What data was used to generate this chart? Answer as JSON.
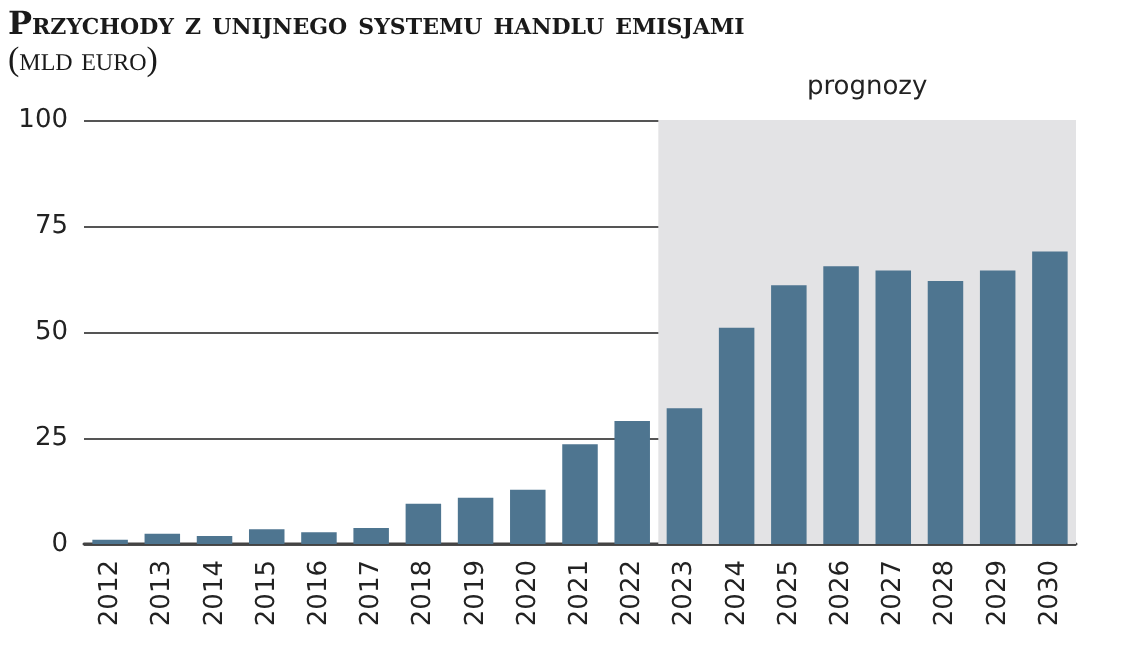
{
  "chart_data": {
    "type": "bar",
    "title": "Przychody z unijnego systemu handlu emisjami",
    "subtitle": "(mld euro)",
    "categories": [
      "2012",
      "2013",
      "2014",
      "2015",
      "2016",
      "2017",
      "2018",
      "2019",
      "2020",
      "2021",
      "2022",
      "2023",
      "2024",
      "2025",
      "2026",
      "2027",
      "2028",
      "2029",
      "2030"
    ],
    "values": [
      1,
      2.4,
      1.9,
      3.5,
      2.8,
      3.8,
      9.5,
      10.9,
      12.8,
      23.5,
      29,
      32,
      51,
      61,
      65.5,
      64.5,
      62,
      64.5,
      69
    ],
    "color": "#4e7590",
    "ylim": [
      0,
      100
    ],
    "yticks": [
      0,
      25,
      50,
      75,
      100
    ],
    "grid": "y",
    "bands": [
      {
        "axis": "x",
        "from": "2023",
        "to": "2030",
        "label": "prognozy",
        "color": "#e3e3e5"
      }
    ]
  }
}
